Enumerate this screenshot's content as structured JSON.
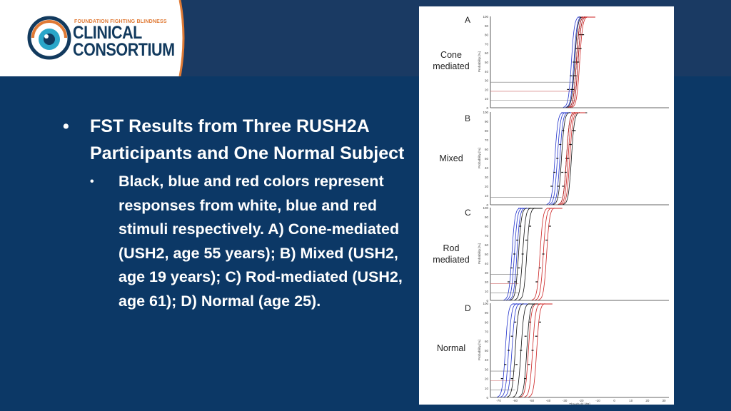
{
  "logo": {
    "org": "FOUNDATION FIGHTING BLINDNESS",
    "line1": "CLINICAL",
    "line2": "CONSORTIUM",
    "colors": {
      "navy": "#123a5e",
      "orange": "#e07a35",
      "teal": "#2aa6c9"
    }
  },
  "bullet_main": "FST Results from Three RUSH2A Participants and One Normal Subject",
  "bullet_sub": "Black, blue and red colors represent responses from white, blue and red stimuli respectively. A) Cone-mediated (USH2, age 55 years); B) Mixed (USH2, age 19 years); C) Rod-mediated (USH2, age 61); D) Normal (age 25).",
  "figure": {
    "panels": [
      {
        "letter": "A",
        "label_1": "Cone",
        "label_2": "mediated"
      },
      {
        "letter": "B",
        "label_1": "Mixed",
        "label_2": ""
      },
      {
        "letter": "C",
        "label_1": "Rod",
        "label_2": "mediated"
      },
      {
        "letter": "D",
        "label_1": "Normal",
        "label_2": ""
      }
    ],
    "y_ticks": [
      "0",
      "10",
      "20",
      "30",
      "40",
      "50",
      "60",
      "70",
      "80",
      "90",
      "100"
    ],
    "y_axis_label": "Probability [%]",
    "x_ticks": [
      "-70",
      "-60",
      "-50",
      "-40",
      "-30",
      "-20",
      "-10",
      "0",
      "10",
      "20",
      "30"
    ],
    "x_axis_label": "Threshold [dB]",
    "colors": {
      "white_stim": "#111111",
      "blue_stim": "#2233cc",
      "red_stim": "#cc2222"
    }
  }
}
